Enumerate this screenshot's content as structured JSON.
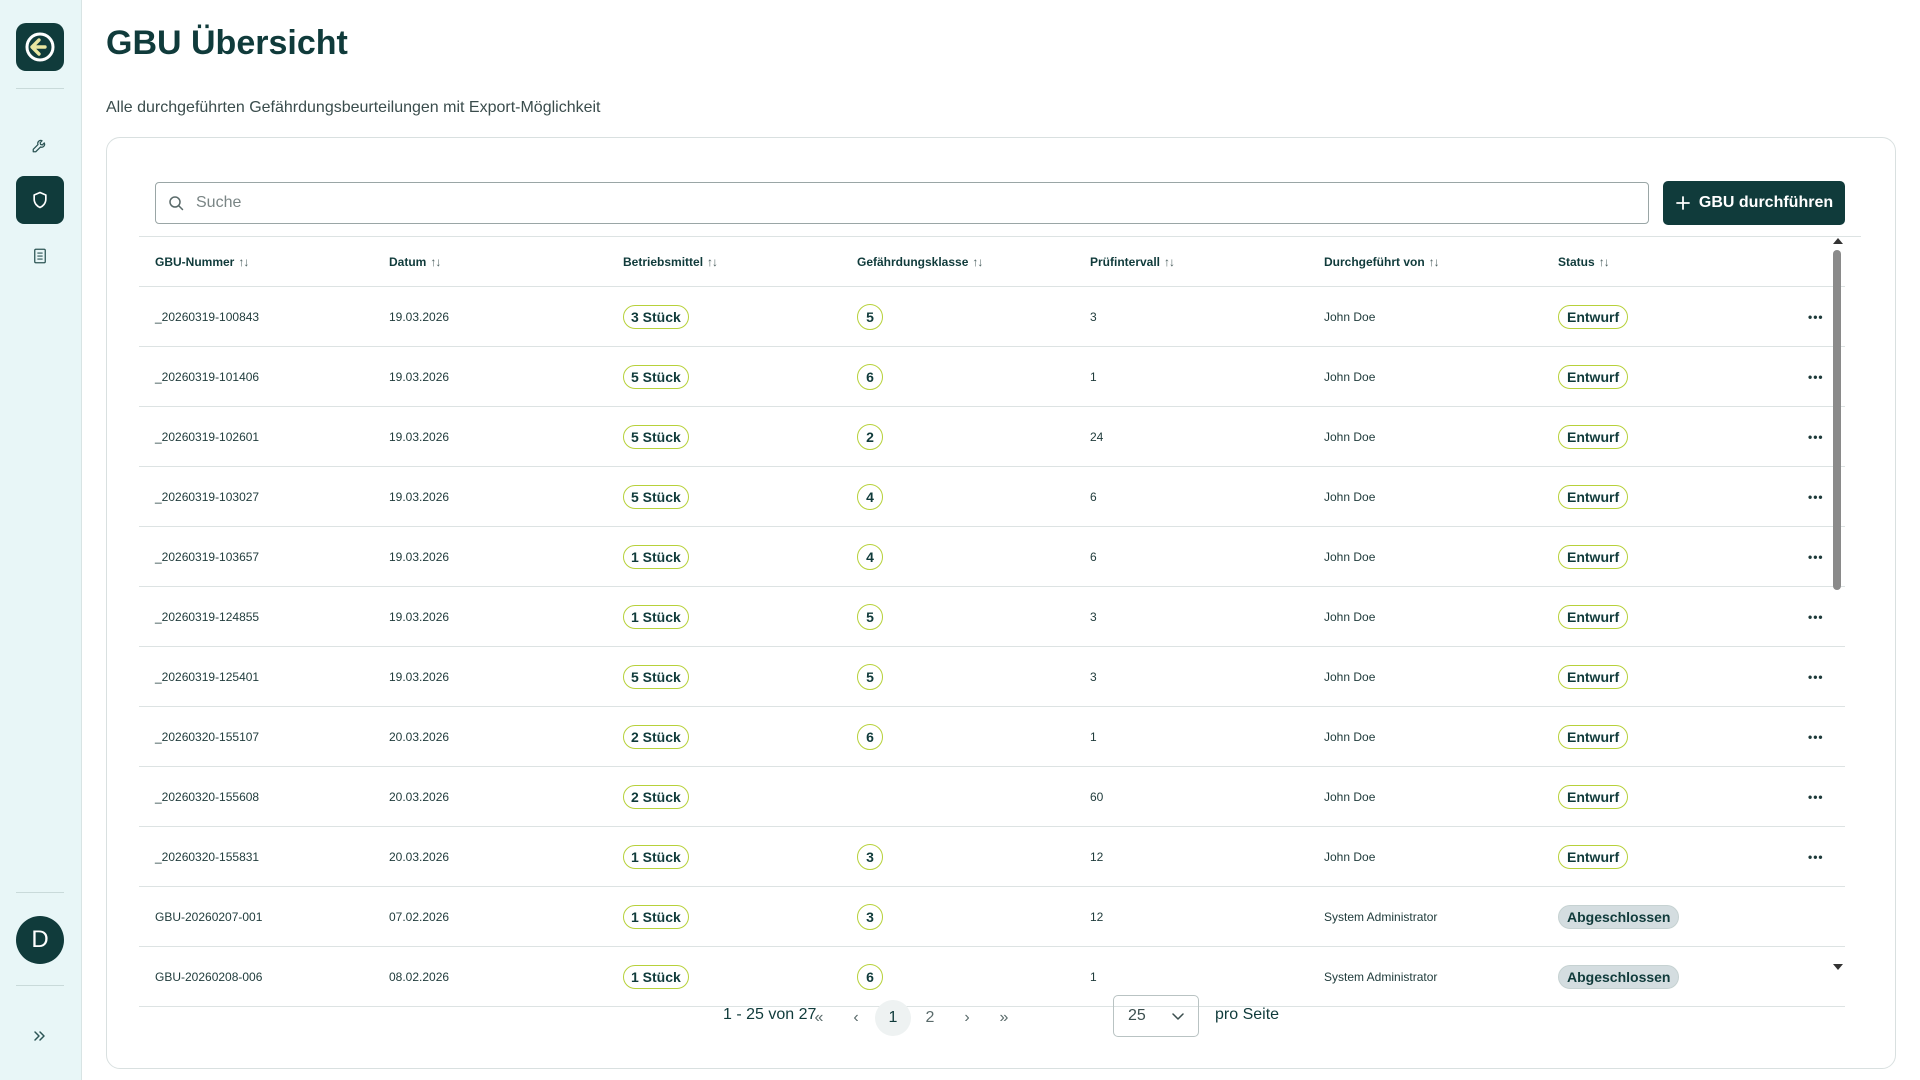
{
  "sidebar": {
    "items": [
      {
        "name": "wrench-icon",
        "active": false
      },
      {
        "name": "shield-icon",
        "active": true
      },
      {
        "name": "document-icon",
        "active": false
      }
    ],
    "avatar_initial": "D",
    "expand_icon": "chevrons-right-icon"
  },
  "header": {
    "title": "GBU Übersicht",
    "subtitle": "Alle durchgeführten Gefährdungsbeurteilungen mit Export-Möglichkeit"
  },
  "search": {
    "placeholder": "Suche"
  },
  "actions": {
    "new_button": "GBU durchführen"
  },
  "table": {
    "columns": [
      "GBU-Nummer",
      "Datum",
      "Betriebsmittel",
      "Gefährdungsklasse",
      "Prüfintervall",
      "Durchgeführt von",
      "Status"
    ],
    "rows": [
      {
        "number": "_20260319-100843",
        "date": "19.03.2026",
        "equipment": "3 Stück",
        "hazard_class": "5",
        "interval": "3",
        "by": "John Doe",
        "status": "Entwurf",
        "status_type": "draft",
        "menu": "•••"
      },
      {
        "number": "_20260319-101406",
        "date": "19.03.2026",
        "equipment": "5 Stück",
        "hazard_class": "6",
        "interval": "1",
        "by": "John Doe",
        "status": "Entwurf",
        "status_type": "draft",
        "menu": "•••"
      },
      {
        "number": "_20260319-102601",
        "date": "19.03.2026",
        "equipment": "5 Stück",
        "hazard_class": "2",
        "interval": "24",
        "by": "John Doe",
        "status": "Entwurf",
        "status_type": "draft",
        "menu": "•••"
      },
      {
        "number": "_20260319-103027",
        "date": "19.03.2026",
        "equipment": "5 Stück",
        "hazard_class": "4",
        "interval": "6",
        "by": "John Doe",
        "status": "Entwurf",
        "status_type": "draft",
        "menu": "•••"
      },
      {
        "number": "_20260319-103657",
        "date": "19.03.2026",
        "equipment": "1 Stück",
        "hazard_class": "4",
        "interval": "6",
        "by": "John Doe",
        "status": "Entwurf",
        "status_type": "draft",
        "menu": "•••"
      },
      {
        "number": "_20260319-124855",
        "date": "19.03.2026",
        "equipment": "1 Stück",
        "hazard_class": "5",
        "interval": "3",
        "by": "John Doe",
        "status": "Entwurf",
        "status_type": "draft",
        "menu": "•••"
      },
      {
        "number": "_20260319-125401",
        "date": "19.03.2026",
        "equipment": "5 Stück",
        "hazard_class": "5",
        "interval": "3",
        "by": "John Doe",
        "status": "Entwurf",
        "status_type": "draft",
        "menu": "•••"
      },
      {
        "number": "_20260320-155107",
        "date": "20.03.2026",
        "equipment": "2 Stück",
        "hazard_class": "6",
        "interval": "1",
        "by": "John Doe",
        "status": "Entwurf",
        "status_type": "draft",
        "menu": "•••"
      },
      {
        "number": "_20260320-155608",
        "date": "20.03.2026",
        "equipment": "2 Stück",
        "hazard_class": "",
        "interval": "60",
        "by": "John Doe",
        "status": "Entwurf",
        "status_type": "draft",
        "menu": "•••"
      },
      {
        "number": "_20260320-155831",
        "date": "20.03.2026",
        "equipment": "1 Stück",
        "hazard_class": "3",
        "interval": "12",
        "by": "John Doe",
        "status": "Entwurf",
        "status_type": "draft",
        "menu": "•••"
      },
      {
        "number": "GBU-20260207-001",
        "date": "07.02.2026",
        "equipment": "1 Stück",
        "hazard_class": "3",
        "interval": "12",
        "by": "System Administrator",
        "status": "Abgeschlossen",
        "status_type": "done",
        "menu": ""
      },
      {
        "number": "GBU-20260208-006",
        "date": "08.02.2026",
        "equipment": "1 Stück",
        "hazard_class": "6",
        "interval": "1",
        "by": "System Administrator",
        "status": "Abgeschlossen",
        "status_type": "done",
        "menu": ""
      }
    ]
  },
  "pagination": {
    "info": "1 - 25 von 27",
    "first": "«",
    "prev": "‹",
    "pages": [
      "1",
      "2"
    ],
    "current_page": "1",
    "next": "›",
    "last": "»",
    "per_page": "25",
    "per_page_label": "pro Seite"
  },
  "colors": {
    "brand": "#103b3b",
    "accent": "#b7d13a",
    "sidebar_bg": "#e8f6f7",
    "done_badge_bg": "#d4dde0"
  }
}
